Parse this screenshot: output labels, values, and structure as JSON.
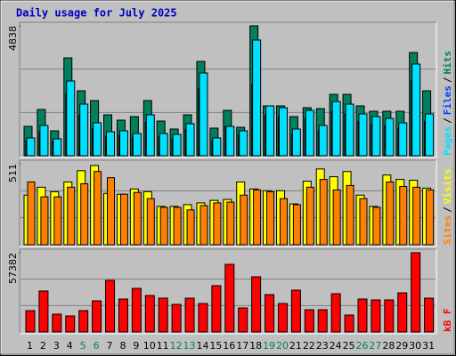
{
  "chart_data": {
    "type": "bar",
    "title": "Daily usage for July 2025",
    "categories": [
      "1",
      "2",
      "3",
      "4",
      "5",
      "6",
      "7",
      "8",
      "9",
      "10",
      "11",
      "12",
      "13",
      "14",
      "15",
      "16",
      "17",
      "18",
      "19",
      "20",
      "21",
      "22",
      "23",
      "24",
      "25",
      "26",
      "27",
      "28",
      "29",
      "30",
      "31"
    ],
    "category_colors": [
      "#000000",
      "#000000",
      "#000000",
      "#000000",
      "#00805c",
      "#00805c",
      "#000000",
      "#000000",
      "#000000",
      "#000000",
      "#000000",
      "#00805c",
      "#00805c",
      "#000000",
      "#000000",
      "#000000",
      "#000000",
      "#000000",
      "#00805c",
      "#00805c",
      "#000000",
      "#000000",
      "#000000",
      "#000000",
      "#000000",
      "#00805c",
      "#00805c",
      "#000000",
      "#000000",
      "#000000",
      "#000000"
    ],
    "legend_separator": "/",
    "grid": true,
    "panels": [
      {
        "ylim": [
          0,
          4838
        ],
        "yticks": [
          4838
        ],
        "series": [
          {
            "name": "Hits",
            "color": "#00805c",
            "values": [
              1094,
              1723,
              928,
              3645,
              2419,
              2054,
              1524,
              1325,
              1458,
              2054,
              1292,
              994,
              1524,
              3512,
              1027,
              1690,
              1060,
              4838,
              1856,
              1856,
              1458,
              1789,
              1756,
              2286,
              2286,
              1856,
              1657,
              1657,
              1657,
              3844,
              2419
            ]
          },
          {
            "name": "Files",
            "color": "#0040ff",
            "values": [
              560,
              900,
              520,
              2300,
              1500,
              1000,
              720,
              760,
              690,
              1250,
              700,
              640,
              980,
              2500,
              560,
              1094,
              780,
              2651,
              1500,
              1450,
              820,
              1380,
              920,
              1650,
              1560,
              1280,
              1180,
              1130,
              1000,
              2800,
              1280
            ]
          },
          {
            "name": "Pages",
            "color": "#00e0ff",
            "values": [
              663,
              1127,
              630,
              2784,
              1922,
              1226,
              895,
              928,
              828,
              1524,
              828,
              795,
              1193,
              3082,
              663,
              1094,
              928,
              4308,
              1856,
              1789,
              994,
              1690,
              1127,
              2021,
              1922,
              1558,
              1458,
              1392,
              1226,
              3413,
              1558
            ]
          }
        ]
      },
      {
        "ylim": [
          0,
          511
        ],
        "yticks": [
          511
        ],
        "series": [
          {
            "name": "Visits",
            "color": "#ffff00",
            "values": [
              313,
              363,
              335,
              396,
              467,
              500,
              324,
              319,
              352,
              335,
              242,
              242,
              253,
              264,
              280,
              286,
              396,
              352,
              341,
              341,
              258,
              401,
              478,
              429,
              462,
              313,
              242,
              440,
              412,
              407,
              357
            ]
          },
          {
            "name": "Sites",
            "color": "#ff8000",
            "values": [
              396,
              302,
              302,
              363,
              385,
              462,
              423,
              319,
              330,
              291,
              236,
              236,
              220,
              247,
              264,
              269,
              313,
              346,
              335,
              291,
              253,
              363,
              412,
              346,
              374,
              291,
              236,
              396,
              368,
              363,
              346
            ]
          }
        ]
      },
      {
        "ylim": [
          0,
          57382
        ],
        "yticks": [
          57382
        ],
        "series": [
          {
            "name": "kB F",
            "color": "#ff0000",
            "values": [
              15474,
              29657,
              12895,
              11605,
              15474,
              22565,
              37394,
              23855,
              31591,
              26434,
              24499,
              19987,
              24499,
              20631,
              33526,
              49000,
              17408,
              39973,
              27079,
              20631,
              30302,
              16118,
              16118,
              27723,
              12250,
              23855,
              23210,
              23210,
              28368,
              57382,
              24499
            ]
          }
        ]
      }
    ]
  }
}
